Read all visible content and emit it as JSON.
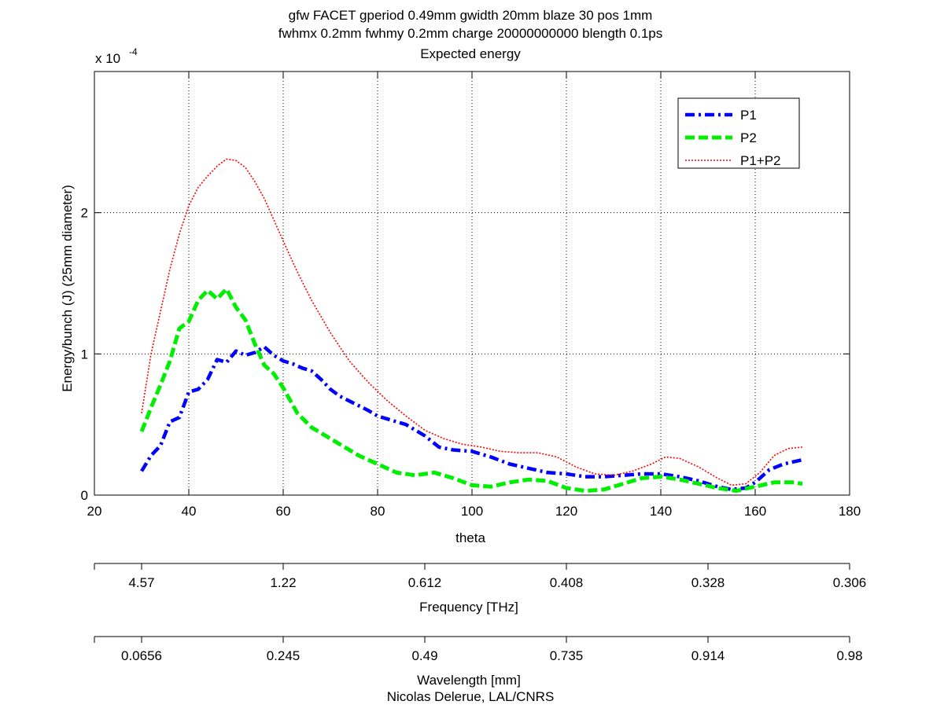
{
  "figure": {
    "title_lines": [
      "gfw FACET gperiod 0.49mm gwidth 20mm blaze 30 pos 1mm",
      "fwhmx 0.2mm fwhmy 0.2mm charge 20000000000 blength 0.1ps",
      "Expected energy"
    ],
    "credit": "Nicolas Delerue, LAL/CNRS"
  },
  "chart_data": {
    "type": "line",
    "xlabel": "theta",
    "ylabel": "Energy/bunch (J) (25mm diameter)",
    "y_multiplier": "x 10",
    "y_multiplier_exponent": "-4",
    "xlim": [
      20,
      180
    ],
    "ylim": [
      0,
      3
    ],
    "xticks": [
      20,
      40,
      60,
      80,
      100,
      120,
      140,
      160,
      180
    ],
    "yticks": [
      0,
      1,
      2
    ],
    "grid": "dotted",
    "legend_position": "top-right",
    "series": [
      {
        "name": "P1",
        "color": "#0000ff",
        "style": "dash-dot",
        "x": [
          30,
          32,
          34,
          36,
          38,
          40,
          42,
          44,
          46,
          48,
          50,
          52,
          54,
          56,
          58,
          60,
          62,
          64,
          66,
          68,
          70,
          72,
          75,
          78,
          80,
          83,
          86,
          90,
          93,
          96,
          100,
          104,
          108,
          112,
          116,
          120,
          124,
          128,
          132,
          136,
          140,
          144,
          148,
          152,
          155,
          158,
          160,
          163,
          166,
          170
        ],
        "y": [
          0.17,
          0.28,
          0.35,
          0.52,
          0.55,
          0.73,
          0.75,
          0.82,
          0.96,
          0.94,
          1.02,
          0.99,
          1.01,
          1.05,
          0.99,
          0.95,
          0.93,
          0.9,
          0.88,
          0.82,
          0.75,
          0.7,
          0.65,
          0.6,
          0.56,
          0.53,
          0.5,
          0.42,
          0.34,
          0.32,
          0.31,
          0.27,
          0.22,
          0.19,
          0.16,
          0.15,
          0.13,
          0.13,
          0.14,
          0.15,
          0.15,
          0.13,
          0.1,
          0.06,
          0.04,
          0.05,
          0.09,
          0.18,
          0.22,
          0.25
        ]
      },
      {
        "name": "P2",
        "color": "#00ee00",
        "style": "dashed",
        "x": [
          30,
          32,
          34,
          36,
          38,
          40,
          42,
          44,
          46,
          48,
          50,
          52,
          54,
          56,
          58,
          60,
          63,
          66,
          69,
          72,
          76,
          80,
          84,
          88,
          92,
          96,
          100,
          104,
          108,
          112,
          116,
          120,
          124,
          128,
          132,
          136,
          140,
          144,
          148,
          152,
          156,
          160,
          164,
          168,
          170
        ],
        "y": [
          0.45,
          0.62,
          0.78,
          0.95,
          1.18,
          1.23,
          1.38,
          1.45,
          1.39,
          1.46,
          1.33,
          1.24,
          1.07,
          0.92,
          0.86,
          0.76,
          0.58,
          0.48,
          0.42,
          0.36,
          0.28,
          0.22,
          0.16,
          0.14,
          0.16,
          0.12,
          0.07,
          0.06,
          0.09,
          0.11,
          0.1,
          0.05,
          0.03,
          0.04,
          0.08,
          0.12,
          0.13,
          0.11,
          0.08,
          0.05,
          0.03,
          0.06,
          0.09,
          0.09,
          0.08
        ]
      },
      {
        "name": "P1+P2",
        "color": "#ff0000",
        "style": "dotted",
        "x": [
          30,
          32,
          34,
          36,
          38,
          40,
          42,
          44,
          46,
          48,
          50,
          52,
          54,
          56,
          58,
          60,
          63,
          66,
          70,
          74,
          78,
          82,
          86,
          90,
          94,
          98,
          102,
          106,
          110,
          114,
          118,
          122,
          126,
          130,
          134,
          138,
          141,
          144,
          148,
          152,
          155,
          158,
          161,
          164,
          167,
          170
        ],
        "y": [
          0.58,
          1.0,
          1.3,
          1.6,
          1.85,
          2.05,
          2.18,
          2.26,
          2.33,
          2.38,
          2.37,
          2.32,
          2.22,
          2.1,
          1.95,
          1.8,
          1.58,
          1.38,
          1.15,
          0.95,
          0.8,
          0.67,
          0.56,
          0.46,
          0.4,
          0.36,
          0.34,
          0.31,
          0.3,
          0.3,
          0.27,
          0.2,
          0.15,
          0.14,
          0.17,
          0.22,
          0.27,
          0.26,
          0.2,
          0.12,
          0.07,
          0.08,
          0.16,
          0.28,
          0.33,
          0.34
        ]
      }
    ],
    "secondary_axes": [
      {
        "label": "Frequency [THz]",
        "tick_positions_theta": [
          30,
          60,
          90,
          120,
          150,
          180
        ],
        "tick_labels": [
          "4.57",
          "1.22",
          "0.612",
          "0.408",
          "0.328",
          "0.306"
        ]
      },
      {
        "label": "Wavelength [mm]",
        "tick_positions_theta": [
          30,
          60,
          90,
          120,
          150,
          180
        ],
        "tick_labels": [
          "0.0656",
          "0.245",
          "0.49",
          "0.735",
          "0.914",
          "0.98"
        ]
      }
    ]
  }
}
